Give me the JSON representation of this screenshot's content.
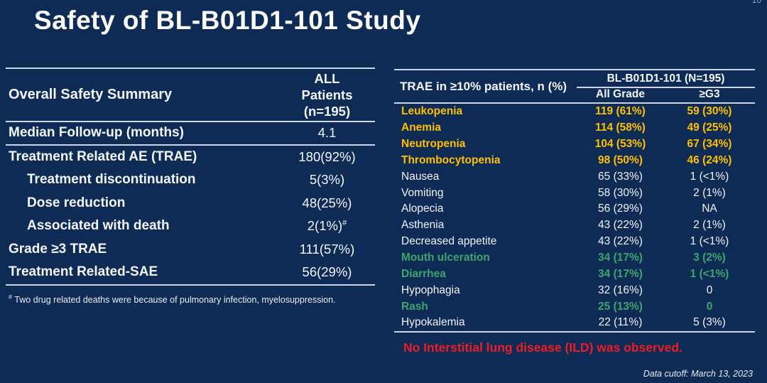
{
  "slide": {
    "title": "Safety of BL-B01D1-101 Study",
    "page_number": "10",
    "red_note": "No Interstitial lung disease (ILD) was observed.",
    "data_cutoff": "Data cutoff: March 13, 2023"
  },
  "colors": {
    "background": "#0D2B55",
    "gold": "#FFC000",
    "green": "#3EA56F",
    "red": "#EE1C25",
    "line": "#CBD5E4",
    "text": "#FFFFFF"
  },
  "left_table": {
    "header": {
      "label": "Overall Safety Summary",
      "value": "ALL\nPatients\n(n=195)"
    },
    "rows": [
      {
        "label": "Median Follow-up (months)",
        "value": "4.1",
        "style": "main"
      },
      {
        "label": "Treatment Related AE (TRAE)",
        "value": "180(92%)",
        "style": "main"
      },
      {
        "label": "Treatment discontinuation",
        "value": "5(3%)",
        "style": "sub"
      },
      {
        "label": "Dose reduction",
        "value": "48(25%)",
        "style": "sub"
      },
      {
        "label": "Associated with death",
        "value": "2(1%)",
        "value_sup": "#",
        "style": "sub"
      },
      {
        "label": "Grade ≥3 TRAE",
        "value": "111(57%)",
        "style": "main"
      },
      {
        "label": "Treatment Related-SAE",
        "value": "56(29%)",
        "style": "main"
      }
    ],
    "footnote": {
      "marker": "#",
      "text": "Two drug related deaths were because of pulmonary infection, myelosuppression."
    }
  },
  "right_table": {
    "header": {
      "label": "TRAE in ≥10% patients, n (%)",
      "group": "BL-B01D1-101 (N=195)",
      "col1": "All Grade",
      "col2": "≥G3"
    },
    "rows": [
      {
        "name": "Leukopenia",
        "all_grade": "119 (61%)",
        "g3": "59 (30%)",
        "style": "gold"
      },
      {
        "name": "Anemia",
        "all_grade": "114 (58%)",
        "g3": "49 (25%)",
        "style": "gold"
      },
      {
        "name": "Neutropenia",
        "all_grade": "104 (53%)",
        "g3": "67 (34%)",
        "style": "gold"
      },
      {
        "name": "Thrombocytopenia",
        "all_grade": "98 (50%)",
        "g3": "46 (24%)",
        "style": "gold"
      },
      {
        "name": "Nausea",
        "all_grade": "65 (33%)",
        "g3": "1 (<1%)",
        "style": "plain"
      },
      {
        "name": "Vomiting",
        "all_grade": "58 (30%)",
        "g3": "2 (1%)",
        "style": "plain"
      },
      {
        "name": "Alopecia",
        "all_grade": "56 (29%)",
        "g3": "NA",
        "style": "plain"
      },
      {
        "name": "Asthenia",
        "all_grade": "43 (22%)",
        "g3": "2 (1%)",
        "style": "plain"
      },
      {
        "name": "Decreased appetite",
        "all_grade": "43 (22%)",
        "g3": "1 (<1%)",
        "style": "plain"
      },
      {
        "name": "Mouth ulceration",
        "all_grade": "34 (17%)",
        "g3": "3 (2%)",
        "style": "green"
      },
      {
        "name": "Diarrhea",
        "all_grade": "34 (17%)",
        "g3": "1 (<1%)",
        "style": "green"
      },
      {
        "name": "Hypophagia",
        "all_grade": "32 (16%)",
        "g3": "0",
        "style": "plain"
      },
      {
        "name": "Rash",
        "all_grade": "25 (13%)",
        "g3": "0",
        "style": "green"
      },
      {
        "name": "Hypokalemia",
        "all_grade": "22 (11%)",
        "g3": "5 (3%)",
        "style": "plain"
      }
    ]
  }
}
